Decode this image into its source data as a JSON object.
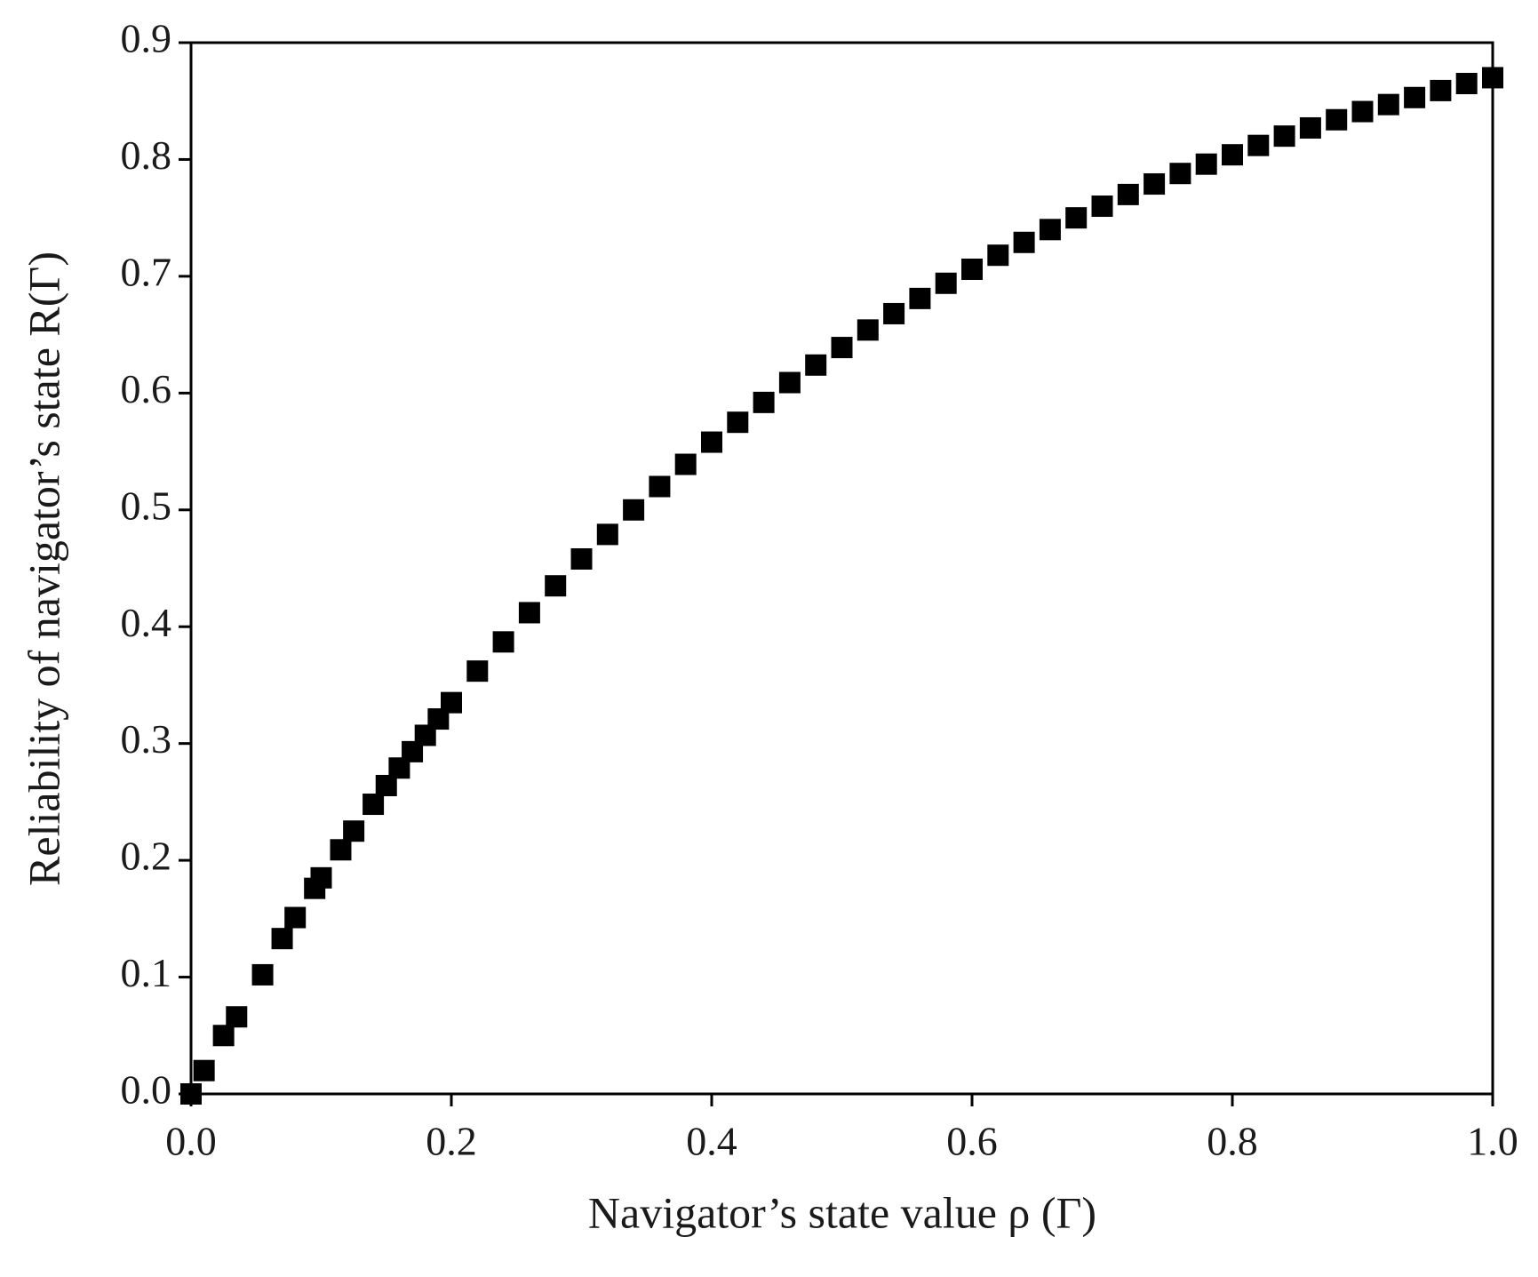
{
  "chart_data": {
    "type": "scatter",
    "x_label": "Navigator’s state value  ρ (Γ)",
    "y_label": "Reliability of navigator’s state  R(Γ)",
    "color": "#000000",
    "x": [
      0,
      0.01,
      0.025,
      0.035,
      0.055,
      0.07,
      0.08,
      0.095,
      0.1,
      0.115,
      0.125,
      0.14,
      0.15,
      0.16,
      0.17,
      0.18,
      0.19,
      0.2,
      0.22,
      0.24,
      0.26,
      0.28,
      0.3,
      0.32,
      0.34,
      0.36,
      0.38,
      0.4,
      0.42,
      0.44,
      0.46,
      0.48,
      0.5,
      0.52,
      0.54,
      0.56,
      0.58,
      0.6,
      0.62,
      0.64,
      0.66,
      0.68,
      0.7,
      0.72,
      0.74,
      0.76,
      0.78,
      0.8,
      0.82,
      0.84,
      0.86,
      0.88,
      0.9,
      0.92,
      0.94,
      0.96,
      0.98,
      1.0
    ],
    "values": [
      0,
      0.02,
      0.05,
      0.066,
      0.102,
      0.133,
      0.151,
      0.176,
      0.185,
      0.209,
      0.225,
      0.248,
      0.264,
      0.279,
      0.293,
      0.307,
      0.321,
      0.335,
      0.362,
      0.387,
      0.412,
      0.435,
      0.458,
      0.479,
      0.5,
      0.52,
      0.539,
      0.558,
      0.575,
      0.592,
      0.609,
      0.624,
      0.639,
      0.654,
      0.668,
      0.681,
      0.694,
      0.706,
      0.718,
      0.729,
      0.74,
      0.75,
      0.76,
      0.77,
      0.779,
      0.788,
      0.796,
      0.804,
      0.812,
      0.82,
      0.827,
      0.834,
      0.841,
      0.847,
      0.853,
      0.859,
      0.865,
      0.87
    ],
    "xlim": [
      0,
      1
    ],
    "xticks": [
      {
        "value": 0,
        "label": "0.0"
      },
      0.2,
      0.4,
      0.6,
      0.8,
      {
        "value": 1,
        "label": "1.0"
      }
    ],
    "ylim": [
      0,
      0.9
    ],
    "yticks": [
      {
        "value": 0,
        "label": "0.0"
      },
      0.1,
      0.2,
      0.3,
      0.4,
      0.5,
      0.6,
      0.7,
      0.8,
      0.9
    ]
  }
}
